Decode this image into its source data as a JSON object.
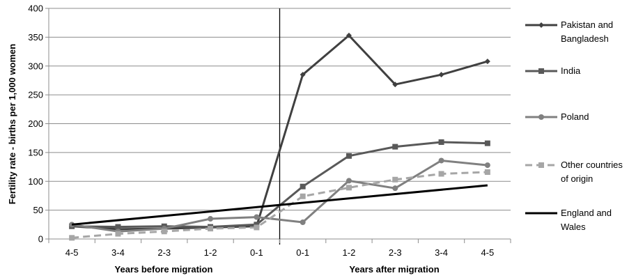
{
  "chart_data": {
    "type": "line",
    "title": "",
    "ylabel": "Fertility rate - births per 1,000 women",
    "ylim": [
      0,
      400
    ],
    "yticks": [
      0,
      50,
      100,
      150,
      200,
      250,
      300,
      350,
      400
    ],
    "categories": [
      "4-5",
      "3-4",
      "2-3",
      "1-2",
      "0-1",
      "0-1",
      "1-2",
      "2-3",
      "3-4",
      "4-5"
    ],
    "group_labels": [
      "Years before migration",
      "Years after migration"
    ],
    "grid": true,
    "legend_position": "right",
    "series": [
      {
        "name": "Pakistan and Bangladesh",
        "legend_lines": [
          "Pakistan and",
          "Bangladesh"
        ],
        "color": "#404040",
        "marker": "diamond",
        "dashed": false,
        "values": [
          22,
          17,
          18,
          20,
          22,
          285,
          353,
          268,
          285,
          308
        ]
      },
      {
        "name": "India",
        "legend_lines": [
          "India"
        ],
        "color": "#595959",
        "marker": "square",
        "dashed": false,
        "values": [
          22,
          21,
          22,
          21,
          25,
          91,
          144,
          160,
          168,
          166
        ]
      },
      {
        "name": "Poland",
        "legend_lines": [
          "Poland"
        ],
        "color": "#808080",
        "marker": "circle",
        "dashed": false,
        "values": [
          25,
          13,
          18,
          35,
          38,
          29,
          101,
          88,
          136,
          128
        ]
      },
      {
        "name": "Other countries of origin",
        "legend_lines": [
          "Other countries",
          "of origin"
        ],
        "color": "#a6a6a6",
        "marker": "square",
        "dashed": true,
        "values": [
          2,
          9,
          13,
          18,
          20,
          74,
          89,
          103,
          113,
          116
        ]
      },
      {
        "name": "England and Wales",
        "legend_lines": [
          "England and",
          "Wales"
        ],
        "color": "#000000",
        "marker": "none",
        "dashed": false,
        "values": [
          25,
          37,
          49,
          59,
          66,
          71,
          76,
          82,
          87,
          93
        ]
      }
    ]
  }
}
